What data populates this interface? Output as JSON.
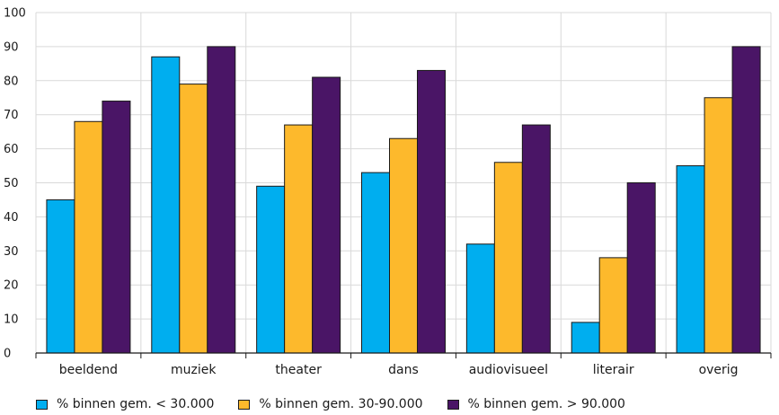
{
  "chart_data": {
    "type": "bar",
    "categories": [
      "beeldend",
      "muziek",
      "theater",
      "dans",
      "audiovisueel",
      "literair",
      "overig"
    ],
    "series": [
      {
        "name": "% binnen gem. < 30.000",
        "color": "#00aeef",
        "values": [
          45,
          87,
          49,
          53,
          32,
          9,
          55
        ]
      },
      {
        "name": "% binnen gem. 30-90.000",
        "color": "#fdb92c",
        "values": [
          68,
          79,
          67,
          63,
          56,
          28,
          75
        ]
      },
      {
        "name": "% binnen gem. > 90.000",
        "color": "#4a1566",
        "values": [
          74,
          90,
          81,
          83,
          67,
          50,
          90
        ]
      }
    ],
    "ylim": [
      0,
      100
    ],
    "yticks": [
      0,
      10,
      20,
      30,
      40,
      50,
      60,
      70,
      80,
      90,
      100
    ],
    "grid": true,
    "legend_position": "bottom",
    "title": "",
    "xlabel": "",
    "ylabel": ""
  }
}
